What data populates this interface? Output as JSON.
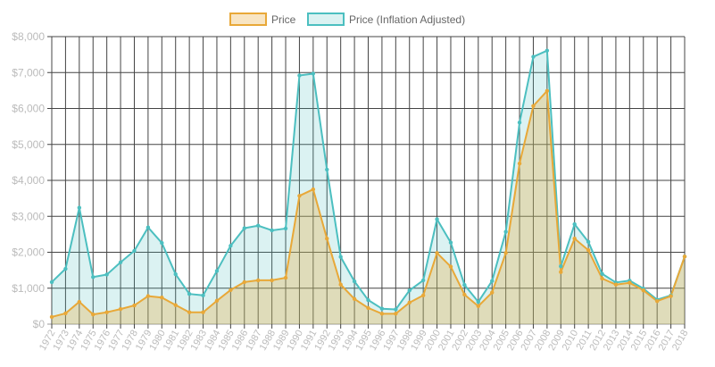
{
  "chart_data": {
    "type": "area",
    "title": "",
    "xlabel": "",
    "ylabel": "",
    "ylim": [
      0,
      8000
    ],
    "y_ticks": [
      "$0",
      "$1,000",
      "$2,000",
      "$3,000",
      "$4,000",
      "$5,000",
      "$6,000",
      "$7,000",
      "$8,000"
    ],
    "grid": true,
    "legend_position": "top-center",
    "x": [
      "1972",
      "1973",
      "1974",
      "1975",
      "1976",
      "1977",
      "1978",
      "1979",
      "1980",
      "1981",
      "1982",
      "1983",
      "1984",
      "1985",
      "1986",
      "1987",
      "1988",
      "1989",
      "1990",
      "1991",
      "1992",
      "1993",
      "1994",
      "1995",
      "1996",
      "1997",
      "1998",
      "1999",
      "2000",
      "2001",
      "2002",
      "2003",
      "2004",
      "2005",
      "2006",
      "2007",
      "2008",
      "2009",
      "2010",
      "2011",
      "2012",
      "2013",
      "2014",
      "2015",
      "2016",
      "2017",
      "2018"
    ],
    "series": [
      {
        "name": "Price",
        "color": "#e8a838",
        "fill": "rgba(232,168,56,0.3)",
        "values": [
          200,
          300,
          620,
          270,
          330,
          420,
          520,
          780,
          740,
          530,
          330,
          330,
          650,
          950,
          1170,
          1220,
          1220,
          1290,
          3570,
          3750,
          2380,
          1100,
          700,
          450,
          290,
          290,
          600,
          800,
          1980,
          1600,
          820,
          500,
          880,
          1980,
          4470,
          6070,
          6490,
          1450,
          2380,
          2060,
          1270,
          1100,
          1150,
          940,
          640,
          780,
          1880
        ]
      },
      {
        "name": "Price (Inflation Adjusted)",
        "color": "#4cbfc0",
        "fill": "rgba(76,191,192,0.2)",
        "values": [
          1170,
          1540,
          3240,
          1310,
          1380,
          1720,
          2040,
          2690,
          2260,
          1390,
          840,
          800,
          1480,
          2180,
          2670,
          2740,
          2610,
          2660,
          6920,
          6970,
          4300,
          1870,
          1190,
          670,
          430,
          410,
          940,
          1220,
          2920,
          2270,
          1090,
          620,
          1200,
          2570,
          5610,
          7440,
          7610,
          1610,
          2780,
          2290,
          1400,
          1160,
          1210,
          990,
          680,
          800,
          1880
        ]
      }
    ]
  }
}
